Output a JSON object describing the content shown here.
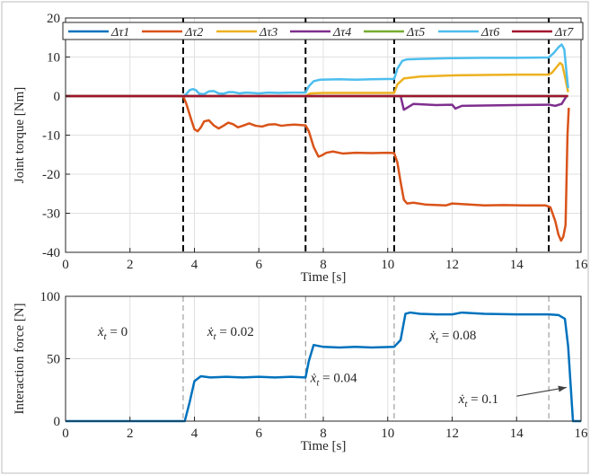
{
  "chart_data": [
    {
      "type": "line",
      "ylabel": "Joint torque [Nm]",
      "xlabel": "Time [s]",
      "xlim": [
        0,
        16
      ],
      "ylim": [
        -40,
        20
      ],
      "xticks": [
        "0",
        "2",
        "4",
        "6",
        "8",
        "10",
        "12",
        "14",
        "16"
      ],
      "yticks": [
        "20",
        "10",
        "0",
        "-10",
        "-20",
        "-30",
        "-40"
      ],
      "grid": true,
      "legend_position": "top",
      "vlines": [
        3.65,
        7.45,
        10.2,
        15.0
      ],
      "series": [
        {
          "name": "Δτ1",
          "color": "#0072BD",
          "points": [
            [
              0,
              0
            ],
            [
              15.5,
              0
            ]
          ]
        },
        {
          "name": "Δτ2",
          "color": "#D95319",
          "points": [
            [
              0,
              0
            ],
            [
              3.65,
              0
            ],
            [
              3.75,
              -2
            ],
            [
              3.9,
              -6
            ],
            [
              4.0,
              -8.5
            ],
            [
              4.1,
              -9
            ],
            [
              4.2,
              -8
            ],
            [
              4.3,
              -6.5
            ],
            [
              4.45,
              -6.2
            ],
            [
              4.6,
              -7.5
            ],
            [
              4.75,
              -8.3
            ],
            [
              4.9,
              -7.6
            ],
            [
              5.05,
              -6.8
            ],
            [
              5.2,
              -7.2
            ],
            [
              5.35,
              -8
            ],
            [
              5.5,
              -7.6
            ],
            [
              5.7,
              -7
            ],
            [
              5.9,
              -7.6
            ],
            [
              6.1,
              -7.8
            ],
            [
              6.3,
              -7.3
            ],
            [
              6.5,
              -7.2
            ],
            [
              6.7,
              -7.6
            ],
            [
              6.9,
              -7.4
            ],
            [
              7.1,
              -7.3
            ],
            [
              7.3,
              -7.4
            ],
            [
              7.45,
              -7.5
            ],
            [
              7.55,
              -9
            ],
            [
              7.7,
              -13
            ],
            [
              7.85,
              -15.5
            ],
            [
              7.95,
              -15.2
            ],
            [
              8.1,
              -14.5
            ],
            [
              8.3,
              -14.2
            ],
            [
              8.6,
              -14.7
            ],
            [
              9.0,
              -14.5
            ],
            [
              9.5,
              -14.6
            ],
            [
              10.0,
              -14.5
            ],
            [
              10.2,
              -14.6
            ],
            [
              10.3,
              -17
            ],
            [
              10.4,
              -22
            ],
            [
              10.5,
              -26.5
            ],
            [
              10.6,
              -27.5
            ],
            [
              10.8,
              -27.3
            ],
            [
              11.2,
              -27.8
            ],
            [
              11.8,
              -28
            ],
            [
              12.0,
              -27.5
            ],
            [
              12.4,
              -27.7
            ],
            [
              13.0,
              -28
            ],
            [
              13.6,
              -27.9
            ],
            [
              14.2,
              -28
            ],
            [
              14.9,
              -28
            ],
            [
              15.05,
              -28.5
            ],
            [
              15.2,
              -32
            ],
            [
              15.3,
              -35.5
            ],
            [
              15.38,
              -37
            ],
            [
              15.45,
              -36
            ],
            [
              15.52,
              -33
            ],
            [
              15.58,
              -10
            ],
            [
              15.62,
              -3
            ]
          ]
        },
        {
          "name": "Δτ3",
          "color": "#EDB120",
          "points": [
            [
              0,
              0
            ],
            [
              7.45,
              0
            ],
            [
              7.6,
              0.7
            ],
            [
              8.0,
              0.8
            ],
            [
              10.2,
              0.8
            ],
            [
              10.3,
              3
            ],
            [
              10.5,
              4.5
            ],
            [
              11.0,
              5
            ],
            [
              12.0,
              5.3
            ],
            [
              13.0,
              5.4
            ],
            [
              14.0,
              5.5
            ],
            [
              15.0,
              5.5
            ],
            [
              15.1,
              6
            ],
            [
              15.25,
              7.5
            ],
            [
              15.35,
              8.5
            ],
            [
              15.42,
              8
            ],
            [
              15.5,
              5
            ],
            [
              15.6,
              1
            ]
          ]
        },
        {
          "name": "Δτ4",
          "color": "#7E2F8E",
          "points": [
            [
              0,
              0
            ],
            [
              10.2,
              0
            ],
            [
              10.4,
              0
            ],
            [
              10.5,
              -3.5
            ],
            [
              10.6,
              -3
            ],
            [
              10.8,
              -2
            ],
            [
              11.5,
              -2.3
            ],
            [
              12.0,
              -2.2
            ],
            [
              12.1,
              -3.2
            ],
            [
              12.3,
              -2.5
            ],
            [
              13.0,
              -2.4
            ],
            [
              14.0,
              -2.3
            ],
            [
              15.0,
              -2.2
            ],
            [
              15.2,
              -2.5
            ],
            [
              15.4,
              -2
            ],
            [
              15.55,
              0
            ]
          ]
        },
        {
          "name": "Δτ5",
          "color": "#77AC30",
          "points": [
            [
              0,
              0
            ],
            [
              15.6,
              0
            ]
          ]
        },
        {
          "name": "Δτ6",
          "color": "#4DBEEE",
          "points": [
            [
              3.65,
              0
            ],
            [
              3.75,
              0.5
            ],
            [
              3.85,
              1.5
            ],
            [
              3.95,
              1.8
            ],
            [
              4.05,
              1.5
            ],
            [
              4.15,
              0.6
            ],
            [
              4.3,
              0.5
            ],
            [
              4.45,
              1.2
            ],
            [
              4.6,
              1.3
            ],
            [
              4.75,
              0.7
            ],
            [
              4.9,
              0.6
            ],
            [
              5.05,
              1.0
            ],
            [
              5.2,
              1.0
            ],
            [
              5.4,
              0.7
            ],
            [
              5.6,
              0.9
            ],
            [
              5.8,
              0.8
            ],
            [
              6.0,
              0.7
            ],
            [
              6.3,
              0.9
            ],
            [
              6.6,
              0.8
            ],
            [
              7.0,
              0.9
            ],
            [
              7.45,
              0.9
            ],
            [
              7.55,
              2.5
            ],
            [
              7.7,
              3.8
            ],
            [
              7.9,
              4.2
            ],
            [
              8.5,
              4.3
            ],
            [
              9.0,
              4.2
            ],
            [
              9.5,
              4.3
            ],
            [
              10.2,
              4.4
            ],
            [
              10.3,
              7
            ],
            [
              10.45,
              9
            ],
            [
              10.6,
              9.4
            ],
            [
              11.0,
              9.5
            ],
            [
              12.0,
              9.7
            ],
            [
              13.0,
              9.8
            ],
            [
              14.0,
              9.8
            ],
            [
              15.0,
              9.9
            ],
            [
              15.15,
              11
            ],
            [
              15.3,
              12.5
            ],
            [
              15.4,
              13.2
            ],
            [
              15.48,
              12
            ],
            [
              15.55,
              6
            ],
            [
              15.6,
              2
            ]
          ]
        },
        {
          "name": "Δτ7",
          "color": "#A2142F",
          "points": [
            [
              0,
              0
            ],
            [
              15.6,
              0
            ]
          ]
        }
      ]
    },
    {
      "type": "line",
      "ylabel": "Interaction force [N]",
      "xlabel": "Time [s]",
      "xlim": [
        0,
        16
      ],
      "ylim": [
        0,
        100
      ],
      "xticks": [
        "0",
        "2",
        "4",
        "6",
        "8",
        "10",
        "12",
        "14",
        "16"
      ],
      "yticks": [
        "100",
        "50",
        "0"
      ],
      "grid": true,
      "vlines": [
        3.65,
        7.45,
        10.2,
        15.0
      ],
      "series": [
        {
          "name": "",
          "color": "#0072BD",
          "points": [
            [
              0,
              0
            ],
            [
              3.7,
              0
            ],
            [
              3.85,
              15
            ],
            [
              4.0,
              32
            ],
            [
              4.2,
              36
            ],
            [
              4.5,
              35
            ],
            [
              5.0,
              35.5
            ],
            [
              5.5,
              35
            ],
            [
              6.0,
              35.5
            ],
            [
              6.5,
              35
            ],
            [
              7.0,
              35.5
            ],
            [
              7.45,
              35
            ],
            [
              7.55,
              48
            ],
            [
              7.7,
              61
            ],
            [
              8.0,
              59.5
            ],
            [
              8.5,
              59
            ],
            [
              9.0,
              59.5
            ],
            [
              9.5,
              59
            ],
            [
              10.2,
              59.5
            ],
            [
              10.4,
              65
            ],
            [
              10.55,
              86
            ],
            [
              10.7,
              87
            ],
            [
              11.0,
              86
            ],
            [
              11.5,
              85.5
            ],
            [
              12.0,
              85.5
            ],
            [
              12.3,
              87
            ],
            [
              13.0,
              86
            ],
            [
              14.0,
              85.5
            ],
            [
              15.0,
              85.5
            ],
            [
              15.3,
              85
            ],
            [
              15.5,
              82
            ],
            [
              15.6,
              60
            ],
            [
              15.7,
              20
            ],
            [
              15.75,
              0
            ],
            [
              16,
              0
            ]
          ]
        }
      ],
      "annotations": [
        {
          "text_main": "ẋ",
          "text_sub": "t",
          "text_rest": " = 0",
          "x": 1.0,
          "y": 72
        },
        {
          "text_main": "ẋ",
          "text_sub": "t",
          "text_rest": " = 0.02",
          "x": 4.4,
          "y": 72
        },
        {
          "text_main": "ẋ",
          "text_sub": "t",
          "text_rest": " = 0.04",
          "x": 7.6,
          "y": 35
        },
        {
          "text_main": "ẋ",
          "text_sub": "t",
          "text_rest": " = 0.08",
          "x": 11.3,
          "y": 69
        },
        {
          "text_main": "ẋ",
          "text_sub": "t",
          "text_rest": " = 0.1",
          "x": 12.2,
          "y": 18
        }
      ],
      "arrow": {
        "from": [
          14.0,
          20
        ],
        "to": [
          15.55,
          27
        ]
      }
    }
  ]
}
